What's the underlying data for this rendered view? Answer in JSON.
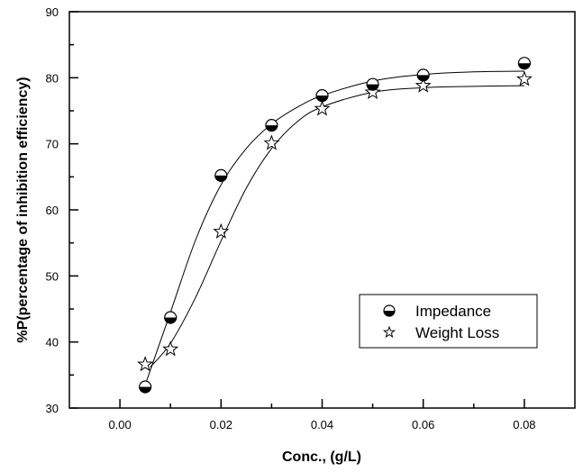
{
  "chart_data": {
    "type": "scatter",
    "title": "",
    "xlabel": "Conc., (g/L)",
    "ylabel": "%P(percentage of inhibition efficiency)",
    "xlim": [
      -0.01,
      0.09
    ],
    "ylim": [
      30,
      90
    ],
    "x_ticks": [
      "0.00",
      "0.02",
      "0.04",
      "0.06",
      "0.08"
    ],
    "x_tick_values": [
      0,
      0.02,
      0.04,
      0.06,
      0.08
    ],
    "y_ticks": [
      "30",
      "40",
      "50",
      "60",
      "70",
      "80",
      "90"
    ],
    "y_tick_values": [
      30,
      40,
      50,
      60,
      70,
      80,
      90
    ],
    "grid": false,
    "legend_position": "lower-right",
    "series": [
      {
        "name": "Impedance",
        "marker": "half-filled-circle",
        "x": [
          0.005,
          0.01,
          0.02,
          0.03,
          0.04,
          0.05,
          0.06,
          0.08
        ],
        "y": [
          33.2,
          43.7,
          65.2,
          72.8,
          77.3,
          79.0,
          80.4,
          82.2
        ],
        "fit_x": [
          0.005,
          0.01,
          0.015,
          0.02,
          0.025,
          0.03,
          0.035,
          0.04,
          0.05,
          0.06,
          0.07,
          0.08
        ],
        "fit_y": [
          33.5,
          44.5,
          55.5,
          63.8,
          69.3,
          73.0,
          75.5,
          77.3,
          79.5,
          80.5,
          80.9,
          81.0
        ]
      },
      {
        "name": "Weight Loss",
        "marker": "open-star",
        "x": [
          0.005,
          0.01,
          0.02,
          0.03,
          0.04,
          0.05,
          0.06,
          0.08
        ],
        "y": [
          36.6,
          38.9,
          56.7,
          70.1,
          75.3,
          77.8,
          78.8,
          79.8
        ],
        "fit_x": [
          0.006,
          0.01,
          0.015,
          0.02,
          0.025,
          0.03,
          0.035,
          0.04,
          0.05,
          0.06,
          0.07,
          0.08
        ],
        "fit_y": [
          36.2,
          39.8,
          46.8,
          55.3,
          63.3,
          69.3,
          73.3,
          75.6,
          77.8,
          78.5,
          78.7,
          78.8
        ]
      }
    ]
  }
}
